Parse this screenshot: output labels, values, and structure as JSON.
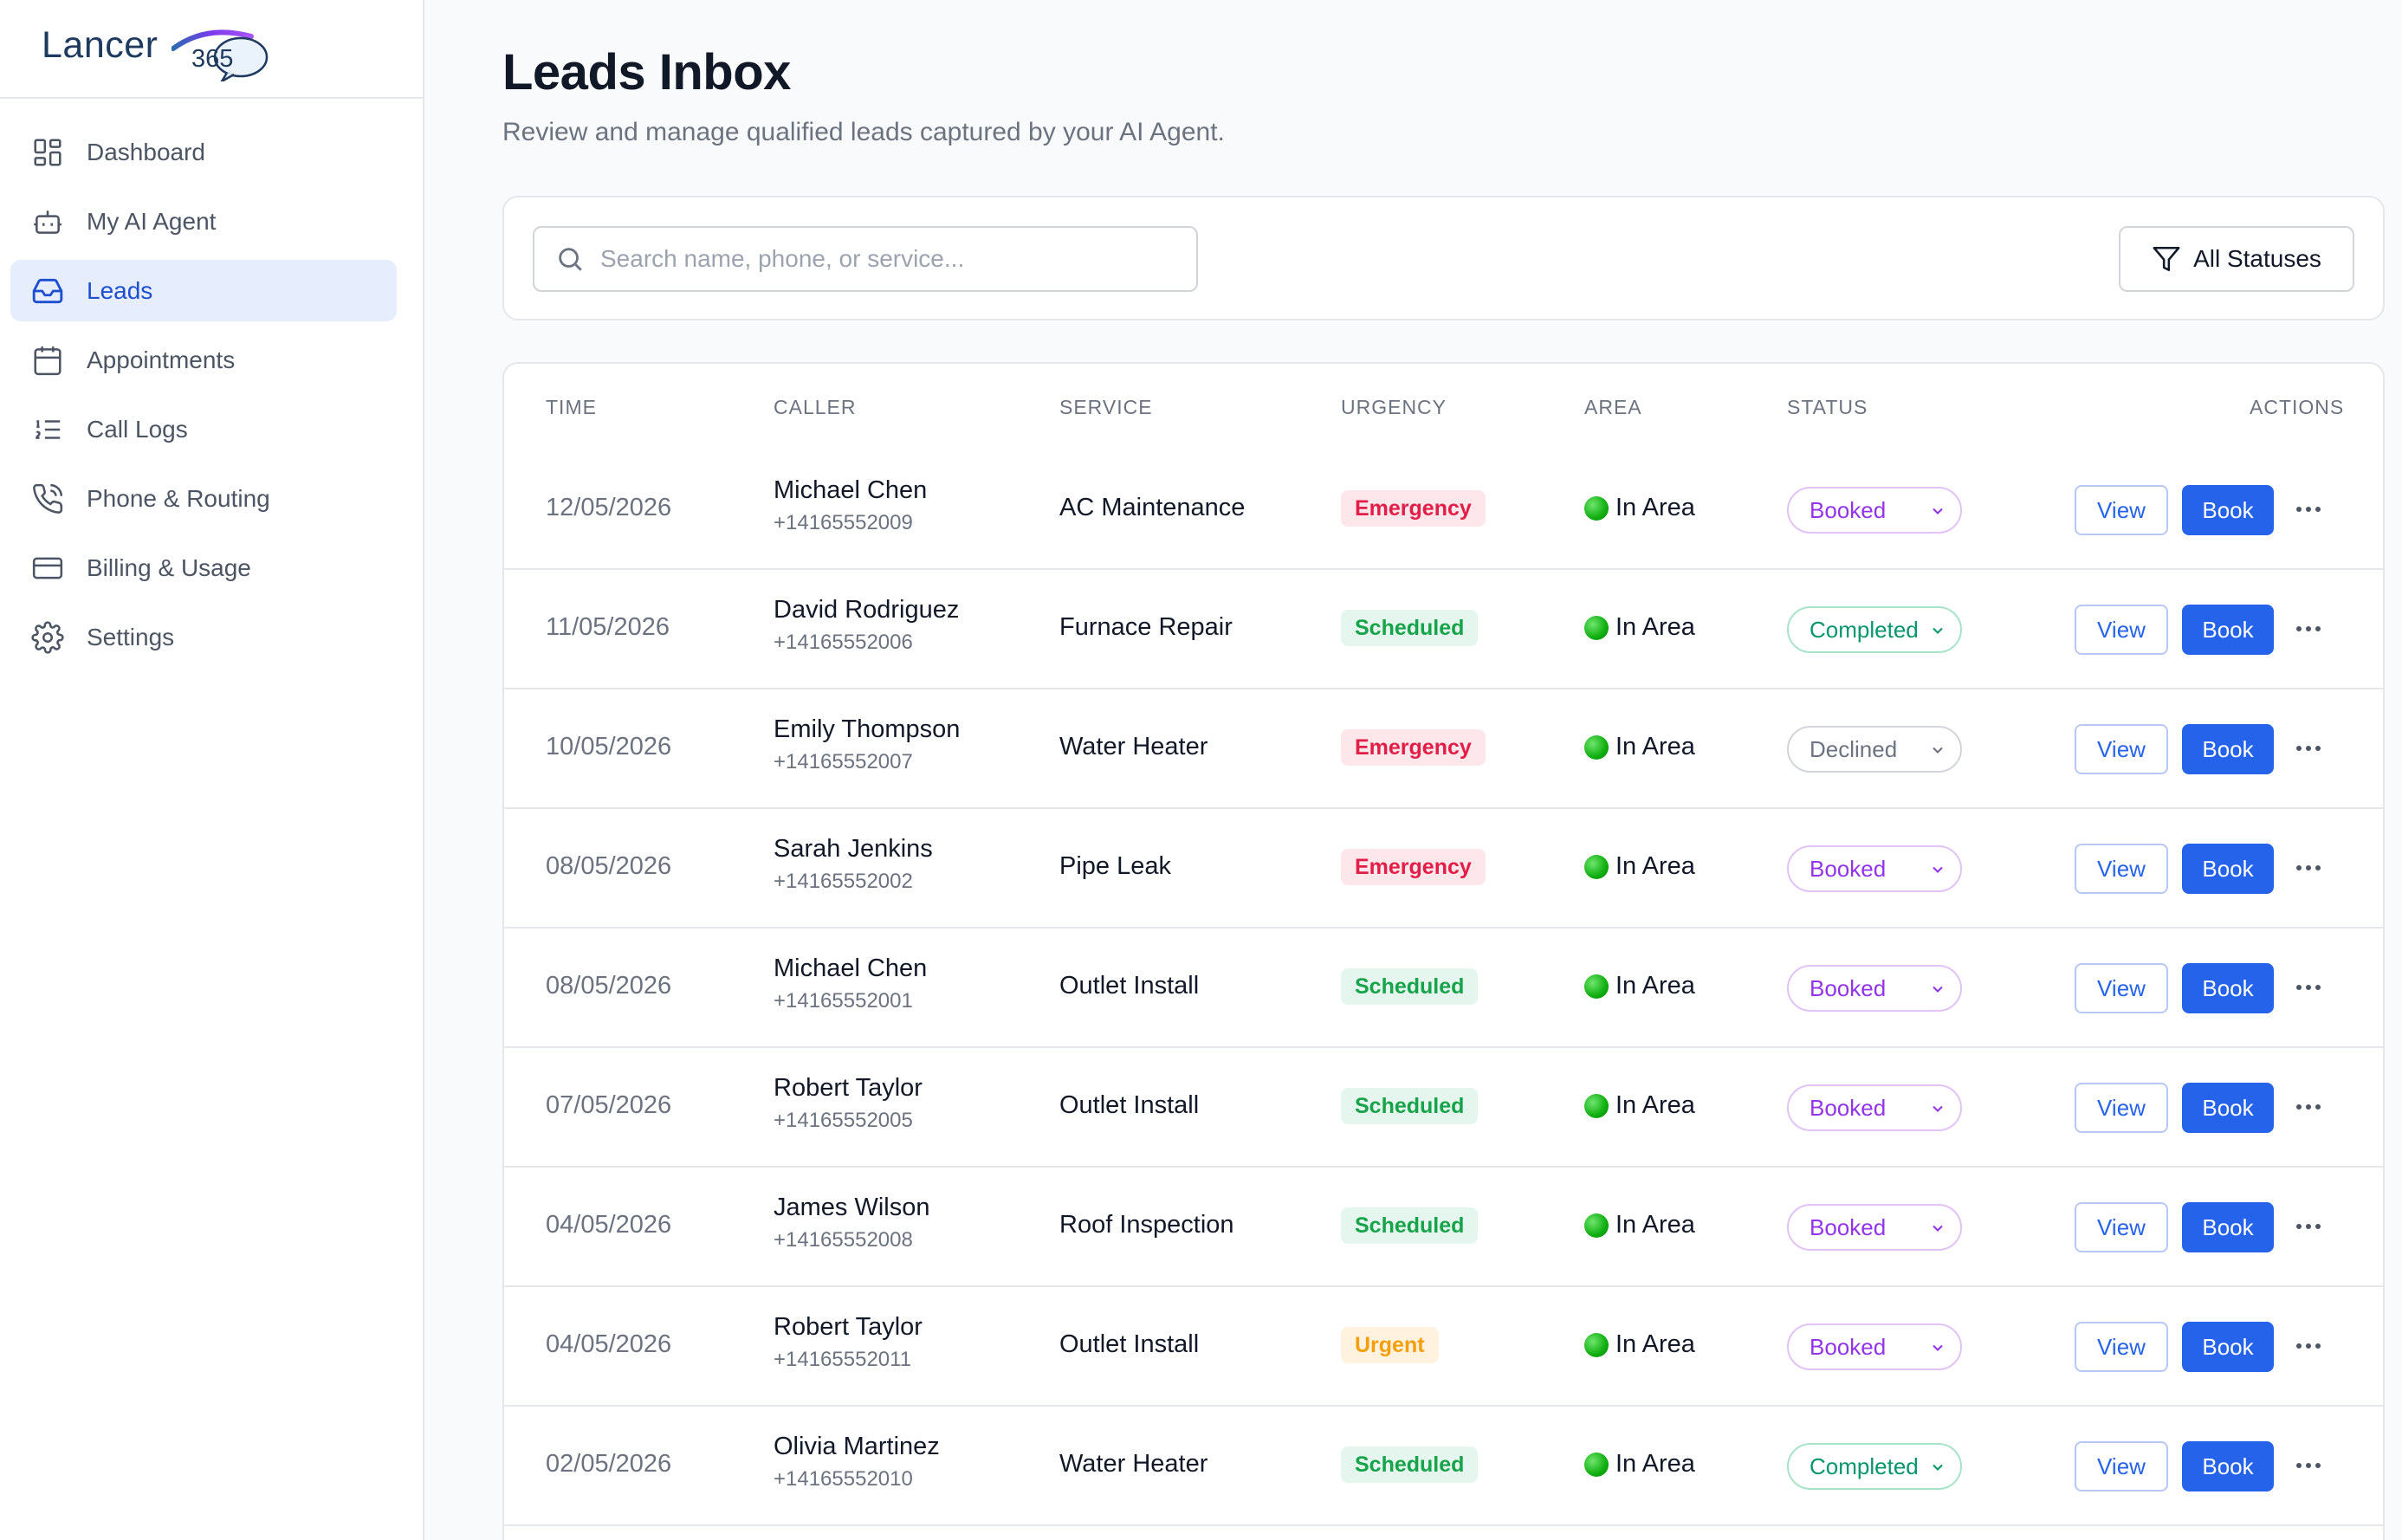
{
  "brand": {
    "name": "Lancer",
    "badge": "365"
  },
  "sidebar": {
    "items": [
      {
        "label": "Dashboard",
        "icon": "dashboard-icon",
        "active": false
      },
      {
        "label": "My AI Agent",
        "icon": "robot-icon",
        "active": false
      },
      {
        "label": "Leads",
        "icon": "inbox-icon",
        "active": true
      },
      {
        "label": "Appointments",
        "icon": "calendar-icon",
        "active": false
      },
      {
        "label": "Call Logs",
        "icon": "list-icon",
        "active": false
      },
      {
        "label": "Phone & Routing",
        "icon": "phone-icon",
        "active": false
      },
      {
        "label": "Billing & Usage",
        "icon": "credit-card-icon",
        "active": false
      },
      {
        "label": "Settings",
        "icon": "gear-icon",
        "active": false
      }
    ]
  },
  "page": {
    "title": "Leads Inbox",
    "subtitle": "Review and manage qualified leads captured by your AI Agent."
  },
  "filters": {
    "search_placeholder": "Search name, phone, or service...",
    "search_value": "",
    "status_label": "All Statuses"
  },
  "table": {
    "headers": {
      "time": "TIME",
      "caller": "CALLER",
      "service": "SERVICE",
      "urgency": "URGENCY",
      "area": "AREA",
      "status": "STATUS",
      "actions": "ACTIONS"
    },
    "view_label": "View",
    "book_label": "Book",
    "rows": [
      {
        "time": "12/05/2026",
        "name": "Michael Chen",
        "phone": "+14165552009",
        "service": "AC Maintenance",
        "urgency": "Emergency",
        "area": "In Area",
        "status": "Booked"
      },
      {
        "time": "11/05/2026",
        "name": "David Rodriguez",
        "phone": "+14165552006",
        "service": "Furnace Repair",
        "urgency": "Scheduled",
        "area": "In Area",
        "status": "Completed"
      },
      {
        "time": "10/05/2026",
        "name": "Emily Thompson",
        "phone": "+14165552007",
        "service": "Water Heater",
        "urgency": "Emergency",
        "area": "In Area",
        "status": "Declined"
      },
      {
        "time": "08/05/2026",
        "name": "Sarah Jenkins",
        "phone": "+14165552002",
        "service": "Pipe Leak",
        "urgency": "Emergency",
        "area": "In Area",
        "status": "Booked"
      },
      {
        "time": "08/05/2026",
        "name": "Michael Chen",
        "phone": "+14165552001",
        "service": "Outlet Install",
        "urgency": "Scheduled",
        "area": "In Area",
        "status": "Booked"
      },
      {
        "time": "07/05/2026",
        "name": "Robert Taylor",
        "phone": "+14165552005",
        "service": "Outlet Install",
        "urgency": "Scheduled",
        "area": "In Area",
        "status": "Booked"
      },
      {
        "time": "04/05/2026",
        "name": "James Wilson",
        "phone": "+14165552008",
        "service": "Roof Inspection",
        "urgency": "Scheduled",
        "area": "In Area",
        "status": "Booked"
      },
      {
        "time": "04/05/2026",
        "name": "Robert Taylor",
        "phone": "+14165552011",
        "service": "Outlet Install",
        "urgency": "Urgent",
        "area": "In Area",
        "status": "Booked"
      },
      {
        "time": "02/05/2026",
        "name": "Olivia Martinez",
        "phone": "+14165552010",
        "service": "Water Heater",
        "urgency": "Scheduled",
        "area": "In Area",
        "status": "Completed"
      }
    ]
  }
}
